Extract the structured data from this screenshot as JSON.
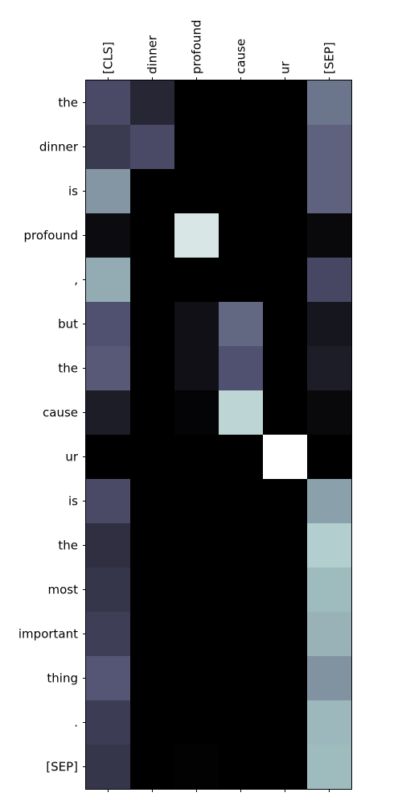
{
  "chart_data": {
    "type": "heatmap",
    "colormap": "bone",
    "x_labels": [
      "[CLS]",
      "dinner",
      "profound",
      "cause",
      "ur",
      "[SEP]"
    ],
    "y_labels": [
      "the",
      "dinner",
      "is",
      "profound",
      ",",
      "but",
      "the",
      "cause",
      "ur",
      "is",
      "the",
      "most",
      "important",
      "thing",
      ".",
      "[SEP]"
    ],
    "values": [
      [
        0.33,
        0.17,
        0.0,
        0.0,
        0.0,
        0.48
      ],
      [
        0.26,
        0.33,
        0.0,
        0.0,
        0.0,
        0.42
      ],
      [
        0.59,
        0.0,
        0.0,
        0.0,
        0.0,
        0.42
      ],
      [
        0.05,
        0.0,
        0.89,
        0.0,
        0.0,
        0.04
      ],
      [
        0.66,
        0.0,
        0.0,
        0.0,
        0.0,
        0.32
      ],
      [
        0.36,
        0.0,
        0.07,
        0.44,
        0.0,
        0.1
      ],
      [
        0.39,
        0.0,
        0.07,
        0.36,
        0.0,
        0.13
      ],
      [
        0.13,
        0.0,
        0.02,
        0.81,
        0.0,
        0.04
      ],
      [
        0.0,
        0.0,
        0.0,
        0.0,
        1.0,
        0.0
      ],
      [
        0.33,
        0.0,
        0.0,
        0.0,
        0.0,
        0.62
      ],
      [
        0.21,
        0.0,
        0.0,
        0.0,
        0.0,
        0.78
      ],
      [
        0.24,
        0.0,
        0.0,
        0.0,
        0.0,
        0.71
      ],
      [
        0.28,
        0.0,
        0.0,
        0.0,
        0.0,
        0.68
      ],
      [
        0.38,
        0.0,
        0.0,
        0.0,
        0.0,
        0.58
      ],
      [
        0.27,
        0.0,
        0.0,
        0.0,
        0.0,
        0.7
      ],
      [
        0.24,
        0.0,
        0.01,
        0.0,
        0.0,
        0.71
      ]
    ],
    "grid": false,
    "legend": "none"
  }
}
